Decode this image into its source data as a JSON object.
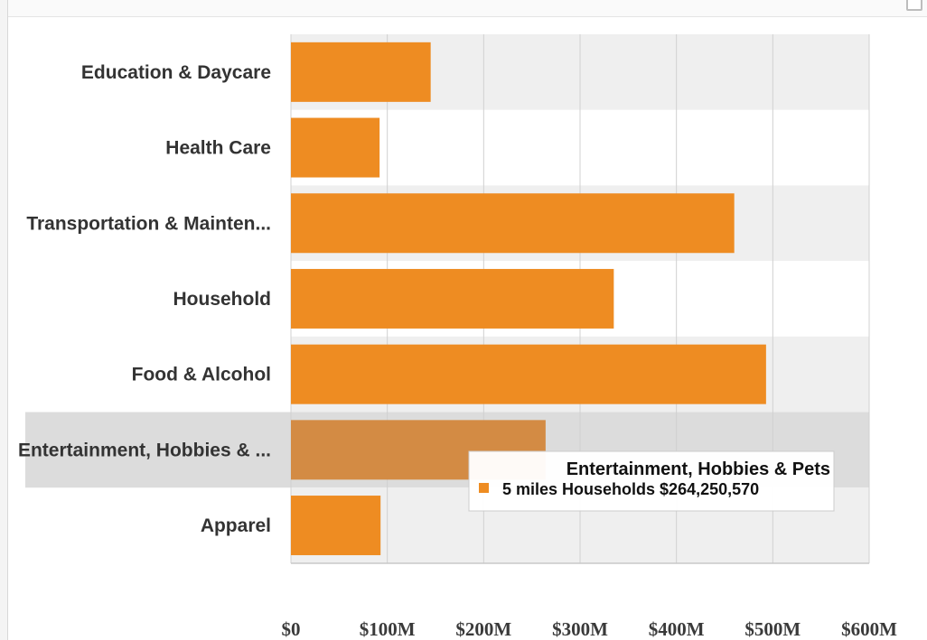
{
  "colors": {
    "bar": "#ee8c22",
    "bar_hover": "#d38b44",
    "band": "#efefef",
    "hover_band": "#dcdcdc",
    "grid": "#d0d0d0"
  },
  "chart_data": {
    "type": "bar",
    "orientation": "horizontal",
    "categories": [
      "Education & Daycare",
      "Health Care",
      "Transportation & Mainten...",
      "Household",
      "Food & Alcohol",
      "Entertainment, Hobbies & ...",
      "Apparel"
    ],
    "series": [
      {
        "values": [
          145000000,
          92000000,
          460000000,
          335000000,
          493000000,
          264250570,
          93000000
        ]
      }
    ],
    "xlim": [
      0,
      600000000
    ],
    "x_ticks": [
      0,
      100000000,
      200000000,
      300000000,
      400000000,
      500000000,
      600000000
    ],
    "tick_labels": [
      "$0",
      "$100M",
      "$200M",
      "$300M",
      "$400M",
      "$500M",
      "$600M"
    ],
    "grid": true,
    "highlighted_category": 5,
    "tooltip": {
      "title": "Entertainment, Hobbies & Pets",
      "line": "5 miles Households $264,250,570"
    }
  }
}
